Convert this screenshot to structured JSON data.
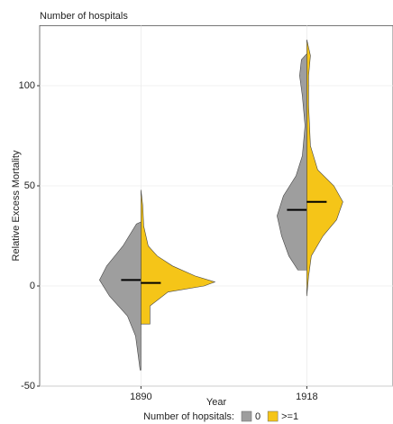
{
  "chart_data": {
    "type": "violin",
    "title": "Number of hospitals",
    "x_label": "Year",
    "y_label": "Relative Excess Mortality",
    "legend_title": "Number of hopsitals:",
    "categories": [
      "1890",
      "1918"
    ],
    "ylim": [
      -50,
      130
    ],
    "yticks": [
      -50,
      0,
      50,
      100
    ],
    "grid": true,
    "series": [
      {
        "name": "0",
        "color": "#9e9e9e",
        "violins": [
          {
            "y": [
              -42,
              -35,
              -25,
              -15,
              -5,
              3,
              10,
              20,
              31,
              32
            ],
            "density": [
              1,
              3,
              6,
              15,
              35,
              46,
              38,
              20,
              5,
              0
            ],
            "median": 3
          },
          {
            "y": [
              8,
              15,
              25,
              35,
              45,
              55,
              65,
              80,
              95,
              105,
              113,
              116
            ],
            "density": [
              10,
              20,
              28,
              33,
              26,
              12,
              5,
              2,
              5,
              8,
              6,
              0
            ],
            "median": 38
          }
        ]
      },
      {
        "name": ">=1",
        "color": "#f5c518",
        "violins": [
          {
            "y": [
              -19,
              -10,
              -3,
              0,
              2,
              5,
              10,
              15,
              20,
              30,
              40,
              48
            ],
            "density": [
              10,
              10,
              30,
              70,
              82,
              60,
              35,
              18,
              8,
              3,
              2,
              0
            ],
            "median": 1.5
          },
          {
            "y": [
              -5,
              5,
              15,
              25,
              33,
              42,
              50,
              58,
              70,
              90,
              105,
              115,
              123
            ],
            "density": [
              0,
              2,
              5,
              18,
              33,
              40,
              30,
              12,
              4,
              2,
              2,
              4,
              0
            ],
            "median": 42
          }
        ]
      }
    ]
  }
}
